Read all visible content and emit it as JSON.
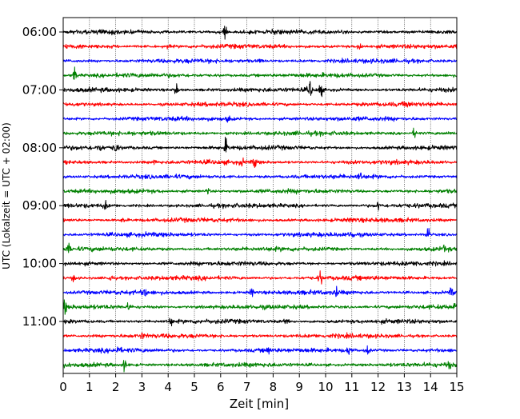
{
  "chart_data": {
    "type": "line",
    "chart_kind": "helicorder seismogram (traces per 15-minute segment)",
    "xlabel": "Zeit  [min]",
    "ylabel": "UTC (Lokalzeit = UTC + 02:00)",
    "xlim": [
      0,
      15
    ],
    "x_ticks": [
      "0",
      "1",
      "2",
      "3",
      "4",
      "5",
      "6",
      "7",
      "8",
      "9",
      "10",
      "11",
      "12",
      "13",
      "14",
      "15"
    ],
    "y_tick_labels": [
      "06:00",
      "07:00",
      "08:00",
      "09:00",
      "10:00",
      "11:00"
    ],
    "vertical_grid": "dotted, every minute",
    "trace_colors": [
      "#000000",
      "#ff0000",
      "#0000ff",
      "#008000"
    ],
    "series": [
      {
        "start": "06:00",
        "events": [
          [
            6.15,
            7
          ]
        ]
      },
      {
        "start": "06:15",
        "events": [
          [
            11.3,
            5
          ],
          [
            4.0,
            2
          ]
        ]
      },
      {
        "start": "06:30",
        "events": [
          [
            7.5,
            2
          ]
        ]
      },
      {
        "start": "06:45",
        "events": [
          [
            0.45,
            7
          ]
        ]
      },
      {
        "start": "07:00",
        "events": [
          [
            4.3,
            6
          ],
          [
            9.4,
            9
          ],
          [
            9.8,
            7
          ]
        ]
      },
      {
        "start": "07:15",
        "events": [
          [
            13.1,
            4
          ]
        ]
      },
      {
        "start": "07:30",
        "events": [
          [
            6.3,
            3
          ]
        ]
      },
      {
        "start": "07:45",
        "events": [
          [
            13.4,
            5
          ],
          [
            6.2,
            2
          ]
        ]
      },
      {
        "start": "08:00",
        "events": [
          [
            2.0,
            6
          ],
          [
            6.2,
            7
          ],
          [
            1.4,
            3
          ]
        ]
      },
      {
        "start": "08:15",
        "events": [
          [
            7.3,
            5
          ],
          [
            6.8,
            3
          ],
          [
            3.5,
            2
          ]
        ]
      },
      {
        "start": "08:30",
        "events": [
          [
            11.3,
            4
          ]
        ]
      },
      {
        "start": "08:45",
        "events": [
          [
            5.5,
            3
          ]
        ]
      },
      {
        "start": "09:00",
        "events": [
          [
            1.6,
            4
          ],
          [
            12.0,
            4
          ]
        ]
      },
      {
        "start": "09:15",
        "events": [
          [
            2.3,
            3
          ],
          [
            11.0,
            2
          ]
        ]
      },
      {
        "start": "09:30",
        "events": [
          [
            11.0,
            4
          ],
          [
            13.9,
            7
          ]
        ]
      },
      {
        "start": "09:45",
        "events": [
          [
            0.2,
            4
          ],
          [
            14.5,
            3
          ]
        ]
      },
      {
        "start": "10:00",
        "events": [
          [
            13.5,
            2
          ]
        ]
      },
      {
        "start": "10:15",
        "events": [
          [
            1.8,
            4
          ],
          [
            9.8,
            6
          ],
          [
            0.4,
            3
          ]
        ]
      },
      {
        "start": "10:30",
        "events": [
          [
            3.1,
            4
          ],
          [
            7.2,
            4
          ],
          [
            10.4,
            4
          ],
          [
            14.8,
            4
          ]
        ]
      },
      {
        "start": "10:45",
        "events": [
          [
            0.05,
            7
          ],
          [
            2.5,
            3
          ],
          [
            14.9,
            3
          ]
        ]
      },
      {
        "start": "11:00",
        "events": [
          [
            4.1,
            4
          ],
          [
            8.5,
            3
          ]
        ]
      },
      {
        "start": "11:15",
        "events": [
          [
            3.0,
            2
          ]
        ]
      },
      {
        "start": "11:30",
        "events": [
          [
            2.1,
            4
          ],
          [
            7.8,
            4
          ],
          [
            10.9,
            5
          ],
          [
            11.6,
            4
          ]
        ]
      },
      {
        "start": "11:45",
        "events": [
          [
            2.35,
            6
          ],
          [
            14.7,
            3
          ]
        ]
      }
    ]
  }
}
